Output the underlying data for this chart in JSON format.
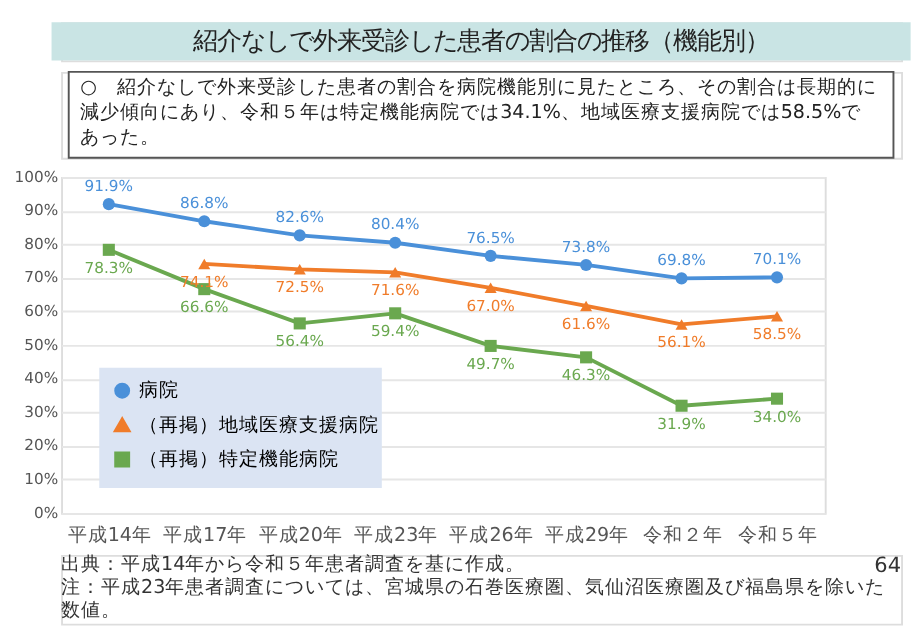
{
  "chart_data": {
    "type": "line",
    "title": "紹介なしで外来受診した患者の割合の推移（機能別）",
    "subtitle": "○　紹介なしで外来受診した患者の割合を病院機能別に見たところ、その割合は長期的に減少傾向にあり、令和５年は特定機能病院では34.1%、地域医療支援病院では58.5%であった。",
    "categories": [
      "平成14年",
      "平成17年",
      "平成20年",
      "平成23年",
      "平成26年",
      "平成29年",
      "令和２年",
      "令和５年"
    ],
    "series": [
      {
        "name": "病院",
        "color": "#4a90d9",
        "marker": "circle",
        "values": [
          91.9,
          86.8,
          82.6,
          80.4,
          76.5,
          73.8,
          69.8,
          70.1
        ],
        "value_labels": [
          "91.9%",
          "86.8%",
          "82.6%",
          "80.4%",
          "76.5%",
          "73.8%",
          "69.8%",
          "70.1%"
        ]
      },
      {
        "name": "（再掲）地域医療支援病院",
        "color": "#f07c2a",
        "marker": "triangle",
        "values": [
          null,
          74.1,
          72.5,
          71.6,
          67.0,
          61.6,
          56.1,
          58.5
        ],
        "value_labels": [
          null,
          "74.1%",
          "72.5%",
          "71.6%",
          "67.0%",
          "61.6%",
          "56.1%",
          "58.5%"
        ]
      },
      {
        "name": "（再掲）特定機能病院",
        "color": "#6aa84f",
        "marker": "square",
        "values": [
          78.3,
          66.6,
          56.4,
          59.4,
          49.7,
          46.3,
          31.9,
          34.0
        ],
        "value_labels": [
          "78.3%",
          "66.6%",
          "56.4%",
          "59.4%",
          "49.7%",
          "46.3%",
          "31.9%",
          "34.0%"
        ]
      }
    ],
    "ylim": [
      0,
      100
    ],
    "yticks": [
      {
        "value": 0,
        "label": "0%"
      },
      {
        "value": 10,
        "label": "10%"
      },
      {
        "value": 20,
        "label": "20%"
      },
      {
        "value": 30,
        "label": "30%"
      },
      {
        "value": 40,
        "label": "40%"
      },
      {
        "value": 50,
        "label": "50%"
      },
      {
        "value": 60,
        "label": "60%"
      },
      {
        "value": 70,
        "label": "70%"
      },
      {
        "value": 80,
        "label": "80%"
      },
      {
        "value": 90,
        "label": "90%"
      },
      {
        "value": 100,
        "label": "100%"
      }
    ],
    "grid": "y",
    "legend": "bottom left",
    "line_style": "solid",
    "annotations": [
      "出典：平成14年から令和５年患者調査を基に作成。",
      "注：平成23年患者調査については、宮城県の石巻医療圏、気仙沼医療圏及び福島県を除いた数値。",
      "64"
    ]
  }
}
